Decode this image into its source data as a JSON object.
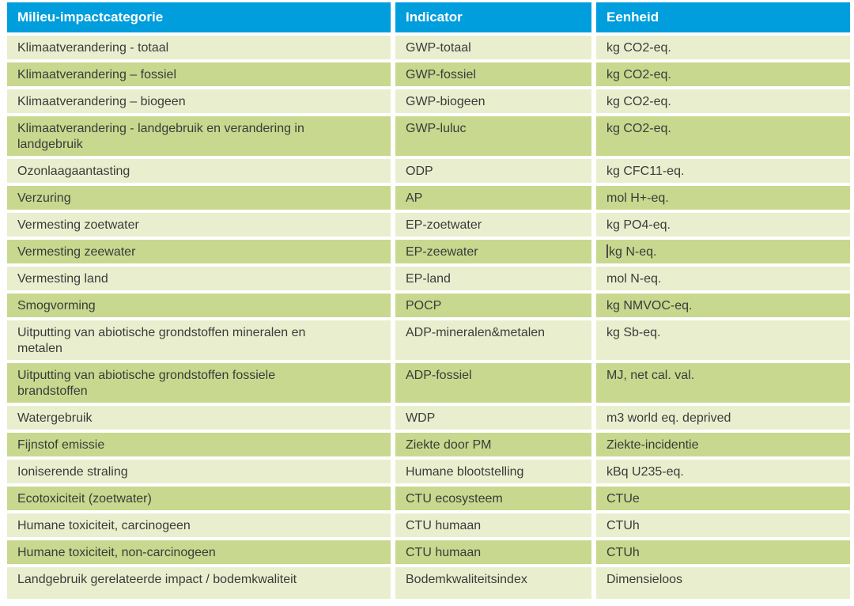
{
  "table": {
    "colors": {
      "header_bg": "#009edd",
      "header_text": "#ffffff",
      "row_light": "#e9efce",
      "row_dark": "#c8d88e",
      "text": "#3b3b3b"
    },
    "headers": [
      {
        "label": "Milieu-impactcategorie"
      },
      {
        "label": "Indicator"
      },
      {
        "label": "Eenheid"
      }
    ],
    "rows": [
      {
        "category": "Klimaatverandering - totaal",
        "indicator": "GWP-totaal",
        "eenheid": "kg CO2-eq."
      },
      {
        "category": "Klimaatverandering – fossiel",
        "indicator": "GWP-fossiel",
        "eenheid": "kg CO2-eq."
      },
      {
        "category": "Klimaatverandering – biogeen",
        "indicator": "GWP-biogeen",
        "eenheid": "kg CO2-eq."
      },
      {
        "category": "Klimaatverandering - landgebruik en verandering in\nlandgebruik",
        "indicator": "GWP-luluc",
        "eenheid": "kg CO2-eq."
      },
      {
        "category": "Ozonlaagaantasting",
        "indicator": "ODP",
        "eenheid": "kg CFC11-eq."
      },
      {
        "category": "Verzuring",
        "indicator": "AP",
        "eenheid": "mol H+-eq."
      },
      {
        "category": "Vermesting zoetwater",
        "indicator": "EP-zoetwater",
        "eenheid": "kg PO4-eq."
      },
      {
        "category": "Vermesting zeewater",
        "indicator": "EP-zeewater",
        "eenheid": "kg N-eq.",
        "caret": true
      },
      {
        "category": "Vermesting land",
        "indicator": "EP-land",
        "eenheid": "mol N-eq."
      },
      {
        "category": "Smogvorming",
        "indicator": "POCP",
        "eenheid": "kg NMVOC-eq."
      },
      {
        "category": "Uitputting van abiotische grondstoffen mineralen en\nmetalen",
        "indicator": "ADP-mineralen&metalen",
        "eenheid": "kg Sb-eq."
      },
      {
        "category": "Uitputting van abiotische grondstoffen fossiele\nbrandstoffen",
        "indicator": "ADP-fossiel",
        "eenheid": "MJ, net cal. val."
      },
      {
        "category": "Watergebruik",
        "indicator": "WDP",
        "eenheid": "m3 world eq. deprived"
      },
      {
        "category": "Fijnstof emissie",
        "indicator": "Ziekte door PM",
        "eenheid": "Ziekte-incidentie"
      },
      {
        "category": "Ioniserende straling",
        "indicator": "Humane blootstelling",
        "eenheid": "kBq U235-eq."
      },
      {
        "category": "Ecotoxiciteit (zoetwater)",
        "indicator": "CTU ecosysteem",
        "eenheid": "CTUe"
      },
      {
        "category": "Humane toxiciteit, carcinogeen",
        "indicator": "CTU humaan",
        "eenheid": "CTUh"
      },
      {
        "category": "Humane toxiciteit, non-carcinogeen",
        "indicator": "CTU humaan",
        "eenheid": "CTUh"
      },
      {
        "category": "Landgebruik gerelateerde impact / bodemkwaliteit",
        "indicator": "Bodemkwaliteitsindex",
        "eenheid": "Dimensieloos",
        "tall": true
      }
    ]
  }
}
